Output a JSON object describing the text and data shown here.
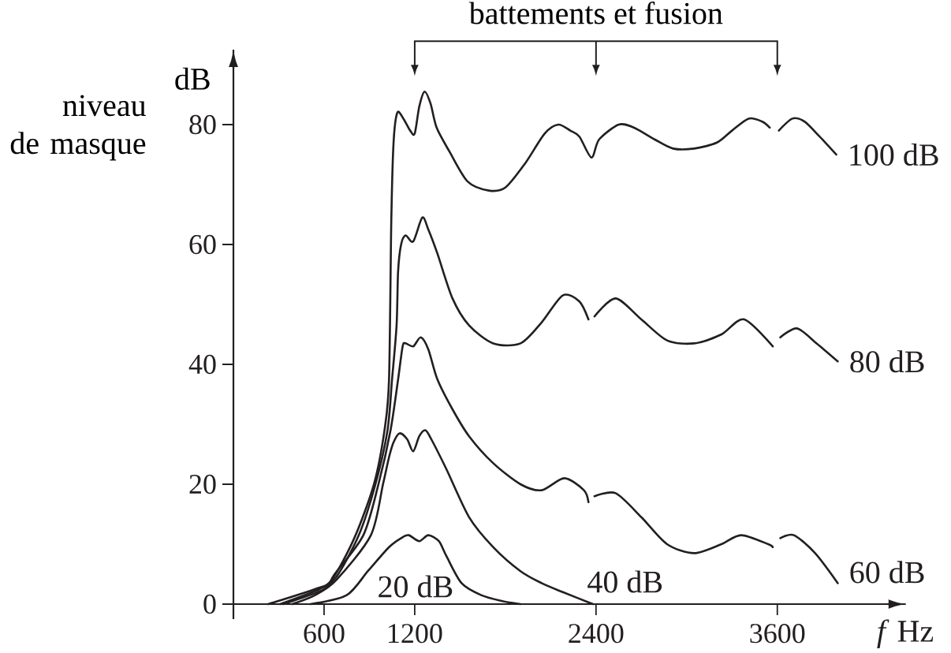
{
  "chart_data": {
    "type": "line",
    "xlabel": "*f* Hz",
    "ylabel": "niveau de masque",
    "annotations": [
      "battements et fusion",
      "dB"
    ],
    "xlim": [
      0,
      4450
    ],
    "ylim": [
      -2.5,
      92.5
    ],
    "xticks": [
      600,
      1200,
      2400,
      3600
    ],
    "yticks": [
      0,
      20,
      40,
      60,
      80
    ],
    "line_style": "solid",
    "series": [
      {
        "name": "20 dB",
        "color": "#231f20",
        "x": [
          510,
          750,
          890,
          1030,
          1110,
          1160,
          1230,
          1290,
          1360,
          1410,
          1510,
          1640,
          1780,
          1900
        ],
        "values": [
          0,
          1.5,
          5.5,
          9.5,
          11,
          11.5,
          10.5,
          11.5,
          10.5,
          8,
          3.5,
          1.5,
          0.5,
          0
        ]
      },
      {
        "name": "40 dB",
        "color": "#231f20",
        "x": [
          390,
          540,
          680,
          910,
          990,
          1030,
          1060,
          1100,
          1150,
          1190,
          1230,
          1270,
          1310,
          1410,
          1560,
          1720,
          1900,
          2040,
          2180,
          2380
        ],
        "values": [
          0,
          1.5,
          4,
          11.5,
          20,
          24.5,
          27,
          28.5,
          27.5,
          25.5,
          28,
          29,
          27.5,
          22.5,
          14.5,
          9.5,
          5.5,
          3.5,
          2,
          0
        ]
      },
      {
        "name": "60 dB",
        "color": "#231f20",
        "x": [
          330,
          600,
          670,
          860,
          960,
          1040,
          1090,
          1120,
          1140,
          1190,
          1240,
          1290,
          1350,
          1450,
          1560,
          1720,
          1900,
          2040,
          2190,
          2320,
          2350,
          2370,
          2390,
          2530,
          2700,
          2870,
          3050,
          3230,
          3360,
          3540,
          3570,
          3595,
          3620,
          3710,
          3850,
          4000
        ],
        "values": [
          0,
          2.5,
          5,
          11.5,
          20,
          29,
          37.5,
          43,
          43.5,
          43,
          44.5,
          42.5,
          37.5,
          32.5,
          28,
          23.5,
          20,
          19,
          21,
          19,
          17,
          null,
          18,
          18.5,
          14.5,
          10,
          8.5,
          10,
          11.5,
          10,
          9.5,
          null,
          11,
          11.5,
          8.5,
          3.5
        ]
      },
      {
        "name": "80 dB",
        "color": "#231f20",
        "x": [
          310,
          570,
          680,
          830,
          940,
          1020,
          1050,
          1080,
          1090,
          1110,
          1140,
          1190,
          1250,
          1290,
          1350,
          1450,
          1560,
          1720,
          1900,
          2040,
          2180,
          2290,
          2350,
          2370,
          2390,
          2530,
          2700,
          2870,
          3050,
          3230,
          3380,
          3570,
          3595,
          3620,
          3730,
          3860,
          4000
        ],
        "values": [
          0,
          2.5,
          4.5,
          11.5,
          20,
          29,
          37.5,
          46.5,
          55.5,
          60,
          61.5,
          60.5,
          64.5,
          62.5,
          58.5,
          51,
          46.5,
          43.5,
          43.5,
          47,
          51.5,
          50.5,
          47.5,
          null,
          48,
          51,
          47.5,
          44,
          43.5,
          45,
          47.5,
          43,
          null,
          44.5,
          46,
          43.5,
          40.5
        ]
      },
      {
        "name": "100 dB",
        "color": "#231f20",
        "x": [
          230,
          540,
          650,
          800,
          930,
          1000,
          1030,
          1045,
          1060,
          1085,
          1125,
          1170,
          1200,
          1230,
          1265,
          1305,
          1345,
          1430,
          1550,
          1690,
          1800,
          1930,
          2060,
          2150,
          2230,
          2290,
          2370,
          2420,
          2550,
          2650,
          2790,
          2910,
          3050,
          3200,
          3300,
          3410,
          3500,
          3550,
          3580,
          3610,
          3700,
          3780,
          3880,
          3990
        ],
        "values": [
          0,
          2.5,
          4,
          11,
          20,
          29,
          37.5,
          64,
          77,
          82,
          81,
          79,
          78.5,
          83,
          85.5,
          83.5,
          79.5,
          75.5,
          70.5,
          69,
          69.5,
          73.5,
          78.5,
          80,
          79,
          78,
          74.5,
          77.5,
          80,
          79.5,
          77.5,
          76,
          76,
          77,
          79,
          81,
          80.5,
          79.5,
          null,
          79,
          81,
          80.5,
          78,
          75
        ]
      }
    ]
  }
}
